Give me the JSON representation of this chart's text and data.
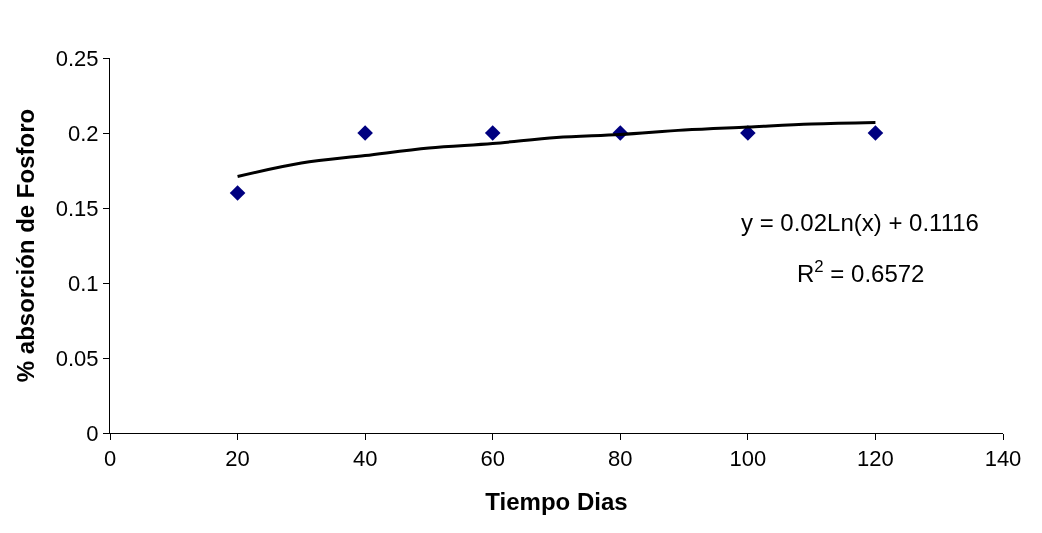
{
  "chart_data": {
    "type": "scatter",
    "xlabel": "Tiempo Dias",
    "ylabel": "% absorción de Fosforo",
    "series": [
      {
        "marker": "diamond",
        "color": "#000080",
        "x": [
          20,
          40,
          60,
          80,
          100,
          120
        ],
        "values": [
          0.16,
          0.2,
          0.2,
          0.2,
          0.2,
          0.2
        ]
      },
      {
        "type": "line",
        "marker": "none",
        "line_style": "solid",
        "color": "#000000",
        "x": [
          20,
          30,
          40,
          50,
          60,
          70,
          80,
          90,
          100,
          110,
          120
        ],
        "values": [
          0.171,
          0.18,
          0.185,
          0.19,
          0.193,
          0.197,
          0.199,
          0.202,
          0.204,
          0.206,
          0.207
        ]
      }
    ],
    "xlim": [
      0,
      140
    ],
    "xticks": [
      0,
      20,
      40,
      60,
      80,
      100,
      120,
      140
    ],
    "ylim": [
      0,
      0.25
    ],
    "yticks": [
      0,
      0.05,
      0.1,
      0.15,
      0.2,
      0.25
    ],
    "annotations": [
      "y = 0.02Ln(x) + 0.1116",
      "R$^{2}$ = 0.6572"
    ]
  }
}
